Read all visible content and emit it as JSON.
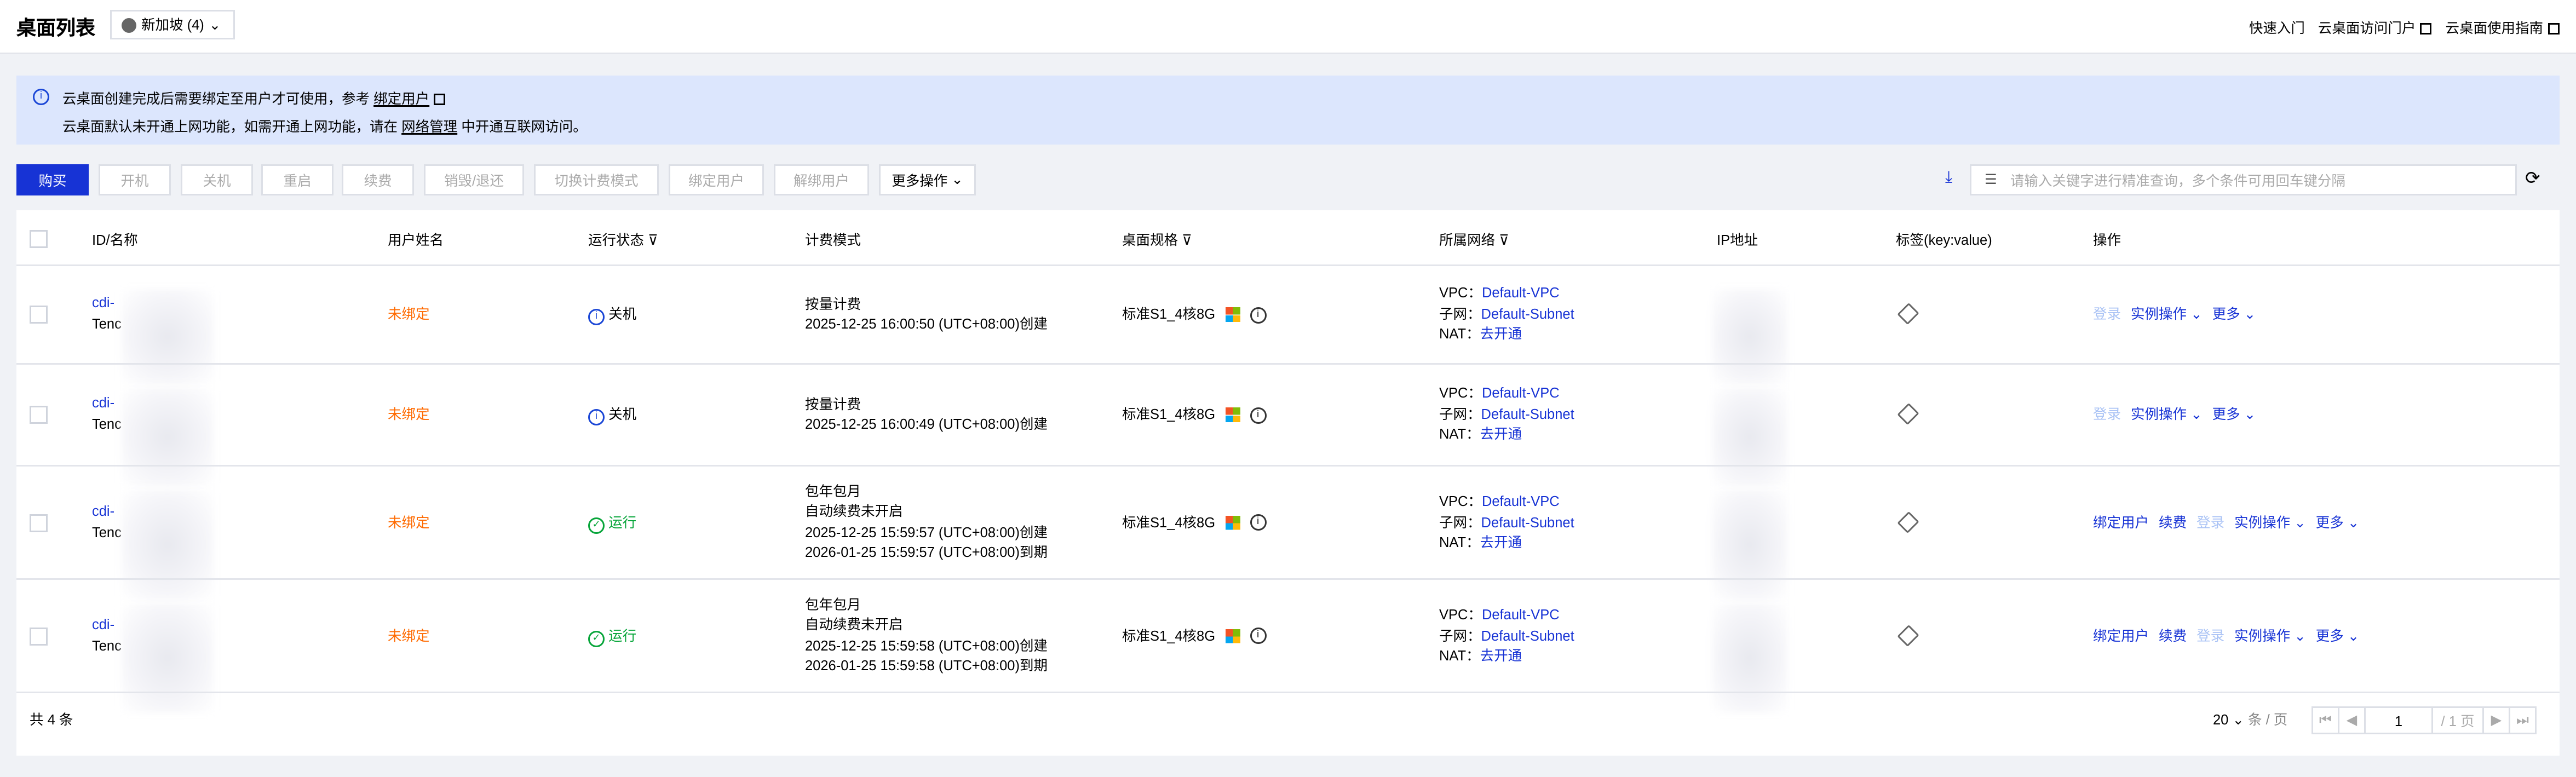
{
  "header": {
    "title": "桌面列表",
    "region": "新加坡 (4)",
    "links": [
      "快速入门",
      "云桌面访问门户",
      "云桌面使用指南"
    ]
  },
  "alert": {
    "line1_pre": "云桌面创建完成后需要绑定至用户才可使用，参考 ",
    "line1_link": "绑定用户",
    "line2_pre": "云桌面默认未开通上网功能，如需开通上网功能，请在 ",
    "line2_link": "网络管理",
    "line2_post": " 中开通互联网访问。"
  },
  "toolbar": {
    "buttons": [
      "购买",
      "开机",
      "关机",
      "重启",
      "续费",
      "销毁/退还",
      "切换计费模式",
      "绑定用户",
      "解绑用户",
      "更多操作"
    ],
    "search_placeholder": "请输入关键字进行精准查询，多个条件可用回车键分隔"
  },
  "table": {
    "columns": [
      "ID/名称",
      "用户姓名",
      "运行状态",
      "计费模式",
      "桌面规格",
      "所属网络",
      "IP地址",
      "标签(key:value)",
      "操作"
    ],
    "rows": [
      {
        "id": "cdi-",
        "name": "Tenc",
        "user": "未绑定",
        "status": "关机",
        "billing": [
          "按量计费",
          "2025-12-25 16:00:50 (UTC+08:00)创建"
        ],
        "spec": "标准S1_4核8G",
        "vpc": "Default-VPC",
        "subnet": "Default-Subnet",
        "nat": "去开通",
        "actions": [
          "登录",
          "实例操作",
          "更多"
        ]
      },
      {
        "id": "cdi-",
        "name": "Tenc",
        "user": "未绑定",
        "status": "关机",
        "billing": [
          "按量计费",
          "2025-12-25 16:00:49 (UTC+08:00)创建"
        ],
        "spec": "标准S1_4核8G",
        "vpc": "Default-VPC",
        "subnet": "Default-Subnet",
        "nat": "去开通",
        "actions": [
          "登录",
          "实例操作",
          "更多"
        ]
      },
      {
        "id": "cdi-",
        "name": "Tenc",
        "user": "未绑定",
        "status": "运行",
        "billing": [
          "包年包月",
          "自动续费未开启",
          "2025-12-25 15:59:57 (UTC+08:00)创建",
          "2026-01-25 15:59:57 (UTC+08:00)到期"
        ],
        "spec": "标准S1_4核8G",
        "vpc": "Default-VPC",
        "subnet": "Default-Subnet",
        "nat": "去开通",
        "actions": [
          "绑定用户",
          "续费",
          "登录",
          "实例操作",
          "更多"
        ]
      },
      {
        "id": "cdi-",
        "name": "Tenc",
        "user": "未绑定",
        "status": "运行",
        "billing": [
          "包年包月",
          "自动续费未开启",
          "2025-12-25 15:59:58 (UTC+08:00)创建",
          "2026-01-25 15:59:58 (UTC+08:00)到期"
        ],
        "spec": "标准S1_4核8G",
        "vpc": "Default-VPC",
        "subnet": "Default-Subnet",
        "nat": "去开通",
        "actions": [
          "绑定用户",
          "续费",
          "登录",
          "实例操作",
          "更多"
        ]
      }
    ],
    "labels": {
      "vpc": "VPC：",
      "subnet": "子网：",
      "nat": "NAT："
    }
  },
  "footer": {
    "total": "共 4 条",
    "page_size": "20",
    "page_size_unit": "条 / 页",
    "page": "1",
    "page_total": "/ 1 页"
  },
  "colors": {
    "primary": "#1733d5",
    "unbound": "#ff6a00",
    "running": "#07a53a",
    "alert_bg": "#dce6fd"
  }
}
